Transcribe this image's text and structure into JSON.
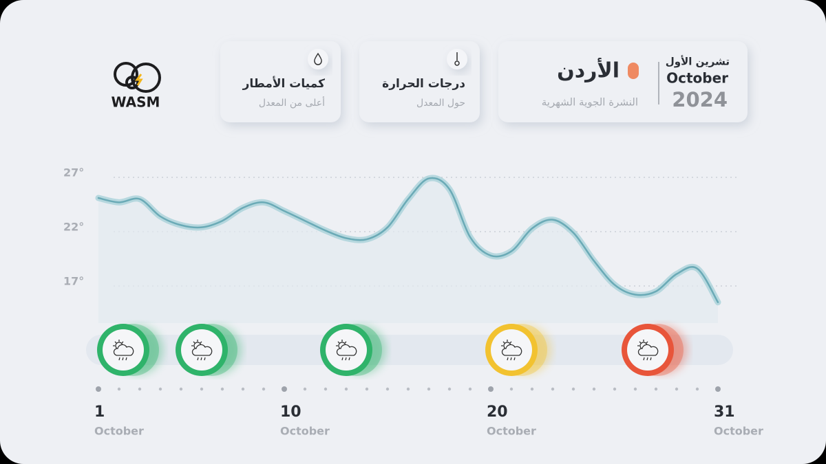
{
  "header": {
    "logo": "WASM",
    "rain_card": {
      "title": "كميات الأمطار",
      "subtitle": "أعلى من المعدل"
    },
    "temp_card": {
      "title": "درجات الحرارة",
      "subtitle": "حول المعدل"
    },
    "main_card": {
      "country": "الأردن",
      "subtitle": "النشرة الجوية الشهرية",
      "month_ar": "تشرين الأول",
      "month_en": "October",
      "year": "2024"
    }
  },
  "chart_data": {
    "type": "line",
    "x": [
      1,
      2,
      3,
      4,
      5,
      6,
      7,
      8,
      9,
      10,
      11,
      12,
      13,
      14,
      15,
      16,
      17,
      18,
      19,
      20,
      21,
      22,
      23,
      24,
      25,
      26,
      27,
      28,
      29,
      30,
      31
    ],
    "series": [
      {
        "color": "#6aaab6",
        "values": [
          25.1,
          24.7,
          25.0,
          23.4,
          22.6,
          22.4,
          23.0,
          24.2,
          24.7,
          23.9,
          23.0,
          22.1,
          21.4,
          21.3,
          22.4,
          25.0,
          26.9,
          25.9,
          21.5,
          19.8,
          20.2,
          22.3,
          23.1,
          21.9,
          19.3,
          17.1,
          16.2,
          16.5,
          18.1,
          18.6,
          15.5
        ]
      }
    ],
    "xlim": [
      0.8,
      32.3
    ],
    "ylim": [
      14.5,
      29
    ],
    "yticks": [
      {
        "value": 17,
        "label": "17°"
      },
      {
        "value": 22,
        "label": "22°"
      },
      {
        "value": 27,
        "label": "27°"
      }
    ],
    "xticks": [
      1,
      10,
      20,
      31
    ],
    "xtick_sublabel": "October",
    "grid": true,
    "events": {
      "x": [
        2.2,
        6,
        13,
        21,
        27.6
      ],
      "colors": [
        "#2fb36a",
        "#2fb36a",
        "#2fb36a",
        "#f2c230",
        "#e8553a"
      ]
    }
  }
}
